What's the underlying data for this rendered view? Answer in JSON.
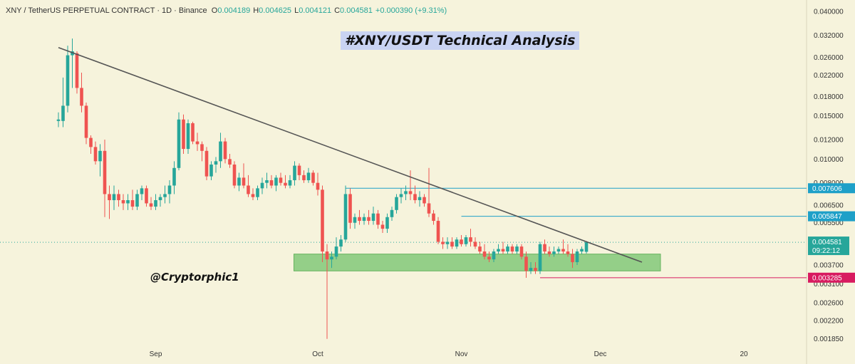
{
  "header": {
    "symbol": "XNY / TetherUS PERPETUAL CONTRACT · 1D · Binance",
    "o_label": "O",
    "o_value": "0.004189",
    "h_label": "H",
    "h_value": "0.004625",
    "l_label": "L",
    "l_value": "0.004121",
    "c_label": "C",
    "c_value": "0.004581",
    "change": "+0.000390 (+9.31%)"
  },
  "chart_title": "#XNY/USDT Technical Analysis",
  "watermark": "@Cryptorphic1",
  "colors": {
    "background": "#f6f3dc",
    "up": "#26a69a",
    "down": "#ef5350",
    "trendline": "#555555",
    "zone": "#7cc573",
    "resistance": "#1ea0c8",
    "support": "#d81b60"
  },
  "chart_data": {
    "type": "candlestick",
    "title": "#XNY/USDT Technical Analysis",
    "y_scale": "log",
    "ylim": [
      0.00175,
      0.04
    ],
    "y_ticks": [
      {
        "value": 0.04,
        "label": "0.040000"
      },
      {
        "value": 0.032,
        "label": "0.032000"
      },
      {
        "value": 0.026,
        "label": "0.026000"
      },
      {
        "value": 0.022,
        "label": "0.022000"
      },
      {
        "value": 0.018,
        "label": "0.018000"
      },
      {
        "value": 0.015,
        "label": "0.015000"
      },
      {
        "value": 0.012,
        "label": "0.012000"
      },
      {
        "value": 0.01,
        "label": "0.010000"
      },
      {
        "value": 0.008,
        "label": "0.008000"
      },
      {
        "value": 0.0065,
        "label": "0.006500"
      },
      {
        "value": 0.0055,
        "label": "0.005500"
      },
      {
        "value": 0.0037,
        "label": "0.003700"
      },
      {
        "value": 0.0031,
        "label": "0.003100"
      },
      {
        "value": 0.0026,
        "label": "0.002600"
      },
      {
        "value": 0.0022,
        "label": "0.002200"
      },
      {
        "value": 0.00185,
        "label": "0.001850"
      }
    ],
    "x_ticks": [
      {
        "index": 21,
        "label": "Sep"
      },
      {
        "index": 56,
        "label": "Oct"
      },
      {
        "index": 87,
        "label": "Nov"
      },
      {
        "index": 117,
        "label": "Dec"
      },
      {
        "index": 148,
        "label": "20"
      }
    ],
    "candles": [
      {
        "o": 0.0143,
        "h": 0.0155,
        "l": 0.0135,
        "c": 0.0145
      },
      {
        "o": 0.0143,
        "h": 0.0215,
        "l": 0.0135,
        "c": 0.0165
      },
      {
        "o": 0.0165,
        "h": 0.029,
        "l": 0.0155,
        "c": 0.0265
      },
      {
        "o": 0.0265,
        "h": 0.031,
        "l": 0.0195,
        "c": 0.0275
      },
      {
        "o": 0.027,
        "h": 0.0275,
        "l": 0.0185,
        "c": 0.0195
      },
      {
        "o": 0.0195,
        "h": 0.0225,
        "l": 0.0155,
        "c": 0.0165
      },
      {
        "o": 0.0165,
        "h": 0.017,
        "l": 0.0115,
        "c": 0.0122
      },
      {
        "o": 0.0122,
        "h": 0.0125,
        "l": 0.0105,
        "c": 0.0112
      },
      {
        "o": 0.0112,
        "h": 0.0118,
        "l": 0.0095,
        "c": 0.0098
      },
      {
        "o": 0.0098,
        "h": 0.0115,
        "l": 0.0085,
        "c": 0.0108
      },
      {
        "o": 0.0108,
        "h": 0.012,
        "l": 0.0058,
        "c": 0.0072
      },
      {
        "o": 0.0072,
        "h": 0.0078,
        "l": 0.0057,
        "c": 0.0068
      },
      {
        "o": 0.0068,
        "h": 0.0078,
        "l": 0.0062,
        "c": 0.0072
      },
      {
        "o": 0.0072,
        "h": 0.0075,
        "l": 0.0064,
        "c": 0.0068
      },
      {
        "o": 0.0068,
        "h": 0.0072,
        "l": 0.0062,
        "c": 0.0066
      },
      {
        "o": 0.0066,
        "h": 0.0072,
        "l": 0.0062,
        "c": 0.0068
      },
      {
        "o": 0.0068,
        "h": 0.0075,
        "l": 0.0062,
        "c": 0.0064
      },
      {
        "o": 0.0064,
        "h": 0.0075,
        "l": 0.0062,
        "c": 0.0072
      },
      {
        "o": 0.0072,
        "h": 0.0078,
        "l": 0.0068,
        "c": 0.0076
      },
      {
        "o": 0.0076,
        "h": 0.0078,
        "l": 0.0064,
        "c": 0.0066
      },
      {
        "o": 0.0066,
        "h": 0.007,
        "l": 0.0062,
        "c": 0.0064
      },
      {
        "o": 0.0064,
        "h": 0.0072,
        "l": 0.0062,
        "c": 0.0068
      },
      {
        "o": 0.0068,
        "h": 0.0072,
        "l": 0.0064,
        "c": 0.007
      },
      {
        "o": 0.007,
        "h": 0.0078,
        "l": 0.0066,
        "c": 0.0072
      },
      {
        "o": 0.0072,
        "h": 0.0082,
        "l": 0.0066,
        "c": 0.0078
      },
      {
        "o": 0.0078,
        "h": 0.0098,
        "l": 0.0072,
        "c": 0.0092
      },
      {
        "o": 0.0092,
        "h": 0.0155,
        "l": 0.009,
        "c": 0.0145
      },
      {
        "o": 0.0145,
        "h": 0.0152,
        "l": 0.0105,
        "c": 0.011
      },
      {
        "o": 0.011,
        "h": 0.0145,
        "l": 0.0105,
        "c": 0.014
      },
      {
        "o": 0.014,
        "h": 0.0142,
        "l": 0.0115,
        "c": 0.0118
      },
      {
        "o": 0.0118,
        "h": 0.0128,
        "l": 0.0108,
        "c": 0.0115
      },
      {
        "o": 0.0115,
        "h": 0.0118,
        "l": 0.0098,
        "c": 0.0108
      },
      {
        "o": 0.0108,
        "h": 0.0112,
        "l": 0.0082,
        "c": 0.0085
      },
      {
        "o": 0.0085,
        "h": 0.0098,
        "l": 0.0082,
        "c": 0.0095
      },
      {
        "o": 0.0095,
        "h": 0.0102,
        "l": 0.0088,
        "c": 0.0098
      },
      {
        "o": 0.0098,
        "h": 0.0128,
        "l": 0.0092,
        "c": 0.0118
      },
      {
        "o": 0.0118,
        "h": 0.0122,
        "l": 0.0096,
        "c": 0.01
      },
      {
        "o": 0.01,
        "h": 0.0105,
        "l": 0.0092,
        "c": 0.0095
      },
      {
        "o": 0.0095,
        "h": 0.0098,
        "l": 0.0076,
        "c": 0.0078
      },
      {
        "o": 0.0078,
        "h": 0.0088,
        "l": 0.0074,
        "c": 0.0084
      },
      {
        "o": 0.0084,
        "h": 0.0096,
        "l": 0.0076,
        "c": 0.0078
      },
      {
        "o": 0.0078,
        "h": 0.0086,
        "l": 0.007,
        "c": 0.0072
      },
      {
        "o": 0.0072,
        "h": 0.0076,
        "l": 0.0068,
        "c": 0.007
      },
      {
        "o": 0.007,
        "h": 0.0078,
        "l": 0.0068,
        "c": 0.0076
      },
      {
        "o": 0.0076,
        "h": 0.0084,
        "l": 0.0072,
        "c": 0.008
      },
      {
        "o": 0.008,
        "h": 0.0088,
        "l": 0.0076,
        "c": 0.0082
      },
      {
        "o": 0.0082,
        "h": 0.0086,
        "l": 0.0076,
        "c": 0.0078
      },
      {
        "o": 0.0078,
        "h": 0.0086,
        "l": 0.0074,
        "c": 0.0084
      },
      {
        "o": 0.0084,
        "h": 0.0088,
        "l": 0.0078,
        "c": 0.008
      },
      {
        "o": 0.008,
        "h": 0.0086,
        "l": 0.0076,
        "c": 0.0078
      },
      {
        "o": 0.0078,
        "h": 0.0086,
        "l": 0.0076,
        "c": 0.0082
      },
      {
        "o": 0.0082,
        "h": 0.0098,
        "l": 0.0078,
        "c": 0.0094
      },
      {
        "o": 0.0094,
        "h": 0.0096,
        "l": 0.0082,
        "c": 0.0086
      },
      {
        "o": 0.0086,
        "h": 0.009,
        "l": 0.008,
        "c": 0.0082
      },
      {
        "o": 0.0082,
        "h": 0.0092,
        "l": 0.008,
        "c": 0.0088
      },
      {
        "o": 0.0088,
        "h": 0.009,
        "l": 0.0078,
        "c": 0.008
      },
      {
        "o": 0.008,
        "h": 0.0088,
        "l": 0.0071,
        "c": 0.0075
      },
      {
        "o": 0.0075,
        "h": 0.0078,
        "l": 0.0038,
        "c": 0.0042
      },
      {
        "o": 0.0042,
        "h": 0.0045,
        "l": 0.00185,
        "c": 0.0039
      },
      {
        "o": 0.0039,
        "h": 0.0042,
        "l": 0.0036,
        "c": 0.004
      },
      {
        "o": 0.004,
        "h": 0.0048,
        "l": 0.0039,
        "c": 0.0044
      },
      {
        "o": 0.0044,
        "h": 0.0049,
        "l": 0.0042,
        "c": 0.0047
      },
      {
        "o": 0.0047,
        "h": 0.0078,
        "l": 0.0046,
        "c": 0.0072
      },
      {
        "o": 0.0072,
        "h": 0.0076,
        "l": 0.0052,
        "c": 0.0055
      },
      {
        "o": 0.0055,
        "h": 0.006,
        "l": 0.0052,
        "c": 0.0058
      },
      {
        "o": 0.0058,
        "h": 0.0062,
        "l": 0.0054,
        "c": 0.0056
      },
      {
        "o": 0.0056,
        "h": 0.006,
        "l": 0.0054,
        "c": 0.0058
      },
      {
        "o": 0.0058,
        "h": 0.0062,
        "l": 0.0054,
        "c": 0.0056
      },
      {
        "o": 0.0056,
        "h": 0.0064,
        "l": 0.0054,
        "c": 0.006
      },
      {
        "o": 0.006,
        "h": 0.0062,
        "l": 0.0052,
        "c": 0.0054
      },
      {
        "o": 0.0054,
        "h": 0.0056,
        "l": 0.005,
        "c": 0.0052
      },
      {
        "o": 0.0052,
        "h": 0.006,
        "l": 0.005,
        "c": 0.0058
      },
      {
        "o": 0.0058,
        "h": 0.0064,
        "l": 0.0056,
        "c": 0.0062
      },
      {
        "o": 0.0062,
        "h": 0.0072,
        "l": 0.006,
        "c": 0.007
      },
      {
        "o": 0.007,
        "h": 0.0076,
        "l": 0.0066,
        "c": 0.0072
      },
      {
        "o": 0.0072,
        "h": 0.0078,
        "l": 0.0068,
        "c": 0.0074
      },
      {
        "o": 0.0074,
        "h": 0.009,
        "l": 0.0068,
        "c": 0.0072
      },
      {
        "o": 0.0072,
        "h": 0.0078,
        "l": 0.0066,
        "c": 0.0068
      },
      {
        "o": 0.0068,
        "h": 0.0074,
        "l": 0.0064,
        "c": 0.007
      },
      {
        "o": 0.007,
        "h": 0.0072,
        "l": 0.0064,
        "c": 0.0066
      },
      {
        "o": 0.0066,
        "h": 0.0092,
        "l": 0.0058,
        "c": 0.006
      },
      {
        "o": 0.006,
        "h": 0.0062,
        "l": 0.0054,
        "c": 0.0056
      },
      {
        "o": 0.0056,
        "h": 0.0058,
        "l": 0.0045,
        "c": 0.0046
      },
      {
        "o": 0.0046,
        "h": 0.0048,
        "l": 0.0043,
        "c": 0.0045
      },
      {
        "o": 0.0045,
        "h": 0.0048,
        "l": 0.0043,
        "c": 0.0046
      },
      {
        "o": 0.0046,
        "h": 0.0048,
        "l": 0.0043,
        "c": 0.0044
      },
      {
        "o": 0.0044,
        "h": 0.0048,
        "l": 0.0043,
        "c": 0.0047
      },
      {
        "o": 0.0047,
        "h": 0.0049,
        "l": 0.0044,
        "c": 0.0045
      },
      {
        "o": 0.0045,
        "h": 0.0049,
        "l": 0.0044,
        "c": 0.0048
      },
      {
        "o": 0.0048,
        "h": 0.0052,
        "l": 0.0044,
        "c": 0.0046
      },
      {
        "o": 0.0046,
        "h": 0.0048,
        "l": 0.0043,
        "c": 0.0044
      },
      {
        "o": 0.0044,
        "h": 0.0046,
        "l": 0.0041,
        "c": 0.0042
      },
      {
        "o": 0.0042,
        "h": 0.0045,
        "l": 0.0039,
        "c": 0.004
      },
      {
        "o": 0.004,
        "h": 0.0042,
        "l": 0.0038,
        "c": 0.0039
      },
      {
        "o": 0.0039,
        "h": 0.0043,
        "l": 0.0038,
        "c": 0.0042
      },
      {
        "o": 0.0042,
        "h": 0.0045,
        "l": 0.0041,
        "c": 0.0043
      },
      {
        "o": 0.0043,
        "h": 0.0046,
        "l": 0.0041,
        "c": 0.0042
      },
      {
        "o": 0.0042,
        "h": 0.0045,
        "l": 0.0041,
        "c": 0.0044
      },
      {
        "o": 0.0044,
        "h": 0.0045,
        "l": 0.0041,
        "c": 0.0042
      },
      {
        "o": 0.0042,
        "h": 0.0045,
        "l": 0.0041,
        "c": 0.0044
      },
      {
        "o": 0.0044,
        "h": 0.0045,
        "l": 0.0039,
        "c": 0.004
      },
      {
        "o": 0.004,
        "h": 0.0042,
        "l": 0.00328,
        "c": 0.0035
      },
      {
        "o": 0.0035,
        "h": 0.0038,
        "l": 0.0034,
        "c": 0.0036
      },
      {
        "o": 0.0036,
        "h": 0.0038,
        "l": 0.0034,
        "c": 0.0035
      },
      {
        "o": 0.0035,
        "h": 0.0046,
        "l": 0.0034,
        "c": 0.0045
      },
      {
        "o": 0.0045,
        "h": 0.0047,
        "l": 0.0041,
        "c": 0.0042
      },
      {
        "o": 0.0042,
        "h": 0.0044,
        "l": 0.004,
        "c": 0.0041
      },
      {
        "o": 0.0041,
        "h": 0.0044,
        "l": 0.004,
        "c": 0.0042
      },
      {
        "o": 0.0042,
        "h": 0.0044,
        "l": 0.0041,
        "c": 0.0043
      },
      {
        "o": 0.0043,
        "h": 0.0047,
        "l": 0.0041,
        "c": 0.0042
      },
      {
        "o": 0.0042,
        "h": 0.0045,
        "l": 0.004,
        "c": 0.0041
      },
      {
        "o": 0.0041,
        "h": 0.0043,
        "l": 0.0036,
        "c": 0.0038
      },
      {
        "o": 0.0038,
        "h": 0.0043,
        "l": 0.0037,
        "c": 0.0042
      },
      {
        "o": 0.0042,
        "h": 0.0044,
        "l": 0.0041,
        "c": 0.0043
      },
      {
        "o": 0.004189,
        "h": 0.004625,
        "l": 0.004121,
        "c": 0.004581
      }
    ],
    "trendline": {
      "from": {
        "index": 0,
        "value": 0.0285
      },
      "to": {
        "index": 126,
        "value": 0.0038
      }
    },
    "zone": {
      "from_index": 57,
      "to_index": 130,
      "top": 0.0041,
      "bottom": 0.0035
    },
    "levels": [
      {
        "name": "resistance-1",
        "value": 0.007606,
        "label": "0.007606",
        "from_index": 62
      },
      {
        "name": "resistance-2",
        "value": 0.005847,
        "label": "0.005847",
        "from_index": 87
      },
      {
        "name": "support",
        "value": 0.003285,
        "label": "0.003285",
        "from_index": 104
      }
    ],
    "current_price": {
      "value": 0.004581,
      "label": "0.004581",
      "countdown": "09:22:12"
    }
  }
}
